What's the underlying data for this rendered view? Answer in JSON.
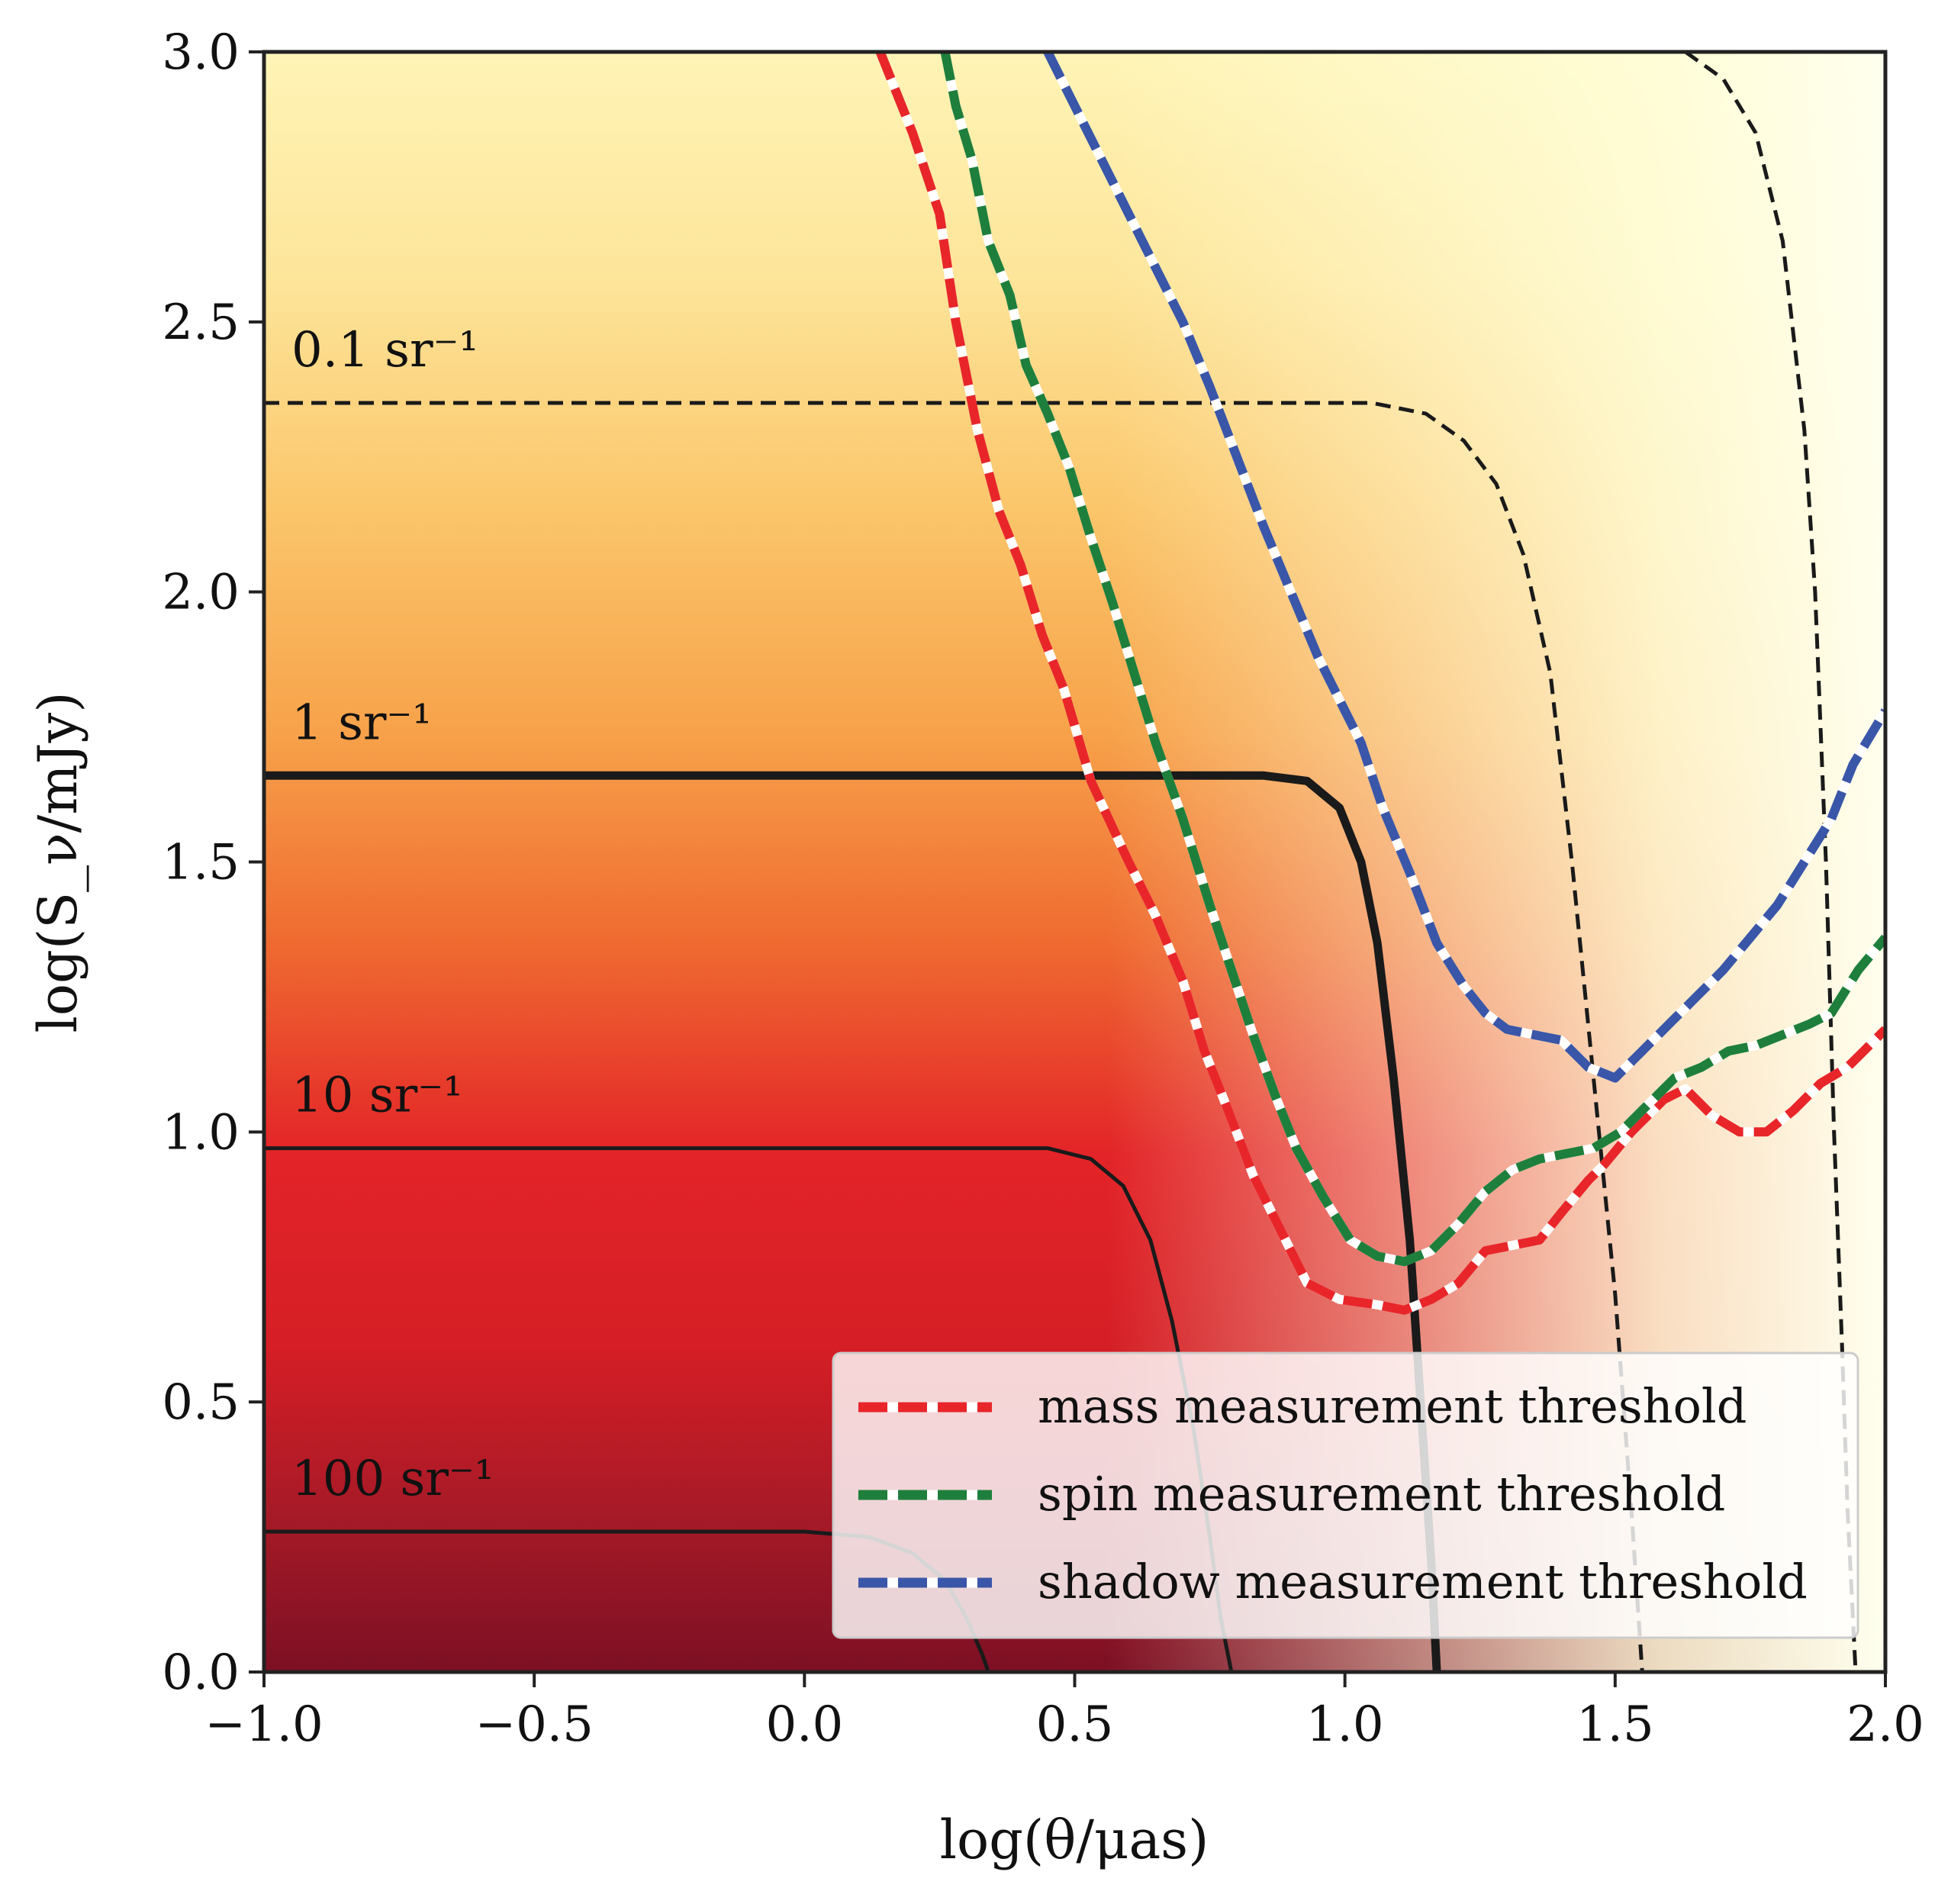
{
  "chart_data": {
    "type": "heatmap",
    "title": "",
    "xlabel": "log(θ/μas)",
    "ylabel": "log(S_ν/mJy)",
    "xlim": [
      -1.0,
      2.0
    ],
    "ylim": [
      0.0,
      3.0
    ],
    "x_ticks": [
      "−1.0",
      "−0.5",
      "0.0",
      "0.5",
      "1.0",
      "1.5",
      "2.0"
    ],
    "y_ticks": [
      "0.0",
      "0.5",
      "1.0",
      "1.5",
      "2.0",
      "2.5",
      "3.0"
    ],
    "grid": false,
    "colormap": "YlOrRd (number density, darker = higher)",
    "colors": {
      "mass": "#e8262a",
      "spin": "#1e7f3c",
      "shadow": "#3a56a8",
      "contour": "#1a1a1a",
      "cmap_high": "#7c1024",
      "cmap_mid_high": "#e32428",
      "cmap_mid": "#f7a24a",
      "cmap_low": "#fff8c4"
    },
    "contours": [
      {
        "label": "0.1 sr⁻¹",
        "style": "dashed",
        "points": [
          [
            -1.0,
            2.35
          ],
          [
            0.6,
            2.35
          ],
          [
            1.05,
            2.35
          ],
          [
            1.15,
            2.33
          ],
          [
            1.22,
            2.28
          ],
          [
            1.28,
            2.2
          ],
          [
            1.33,
            2.07
          ],
          [
            1.38,
            1.85
          ],
          [
            1.42,
            1.5
          ],
          [
            1.46,
            1.1
          ],
          [
            1.5,
            0.7
          ],
          [
            1.53,
            0.3
          ],
          [
            1.55,
            0.0
          ]
        ]
      },
      {
        "label": "1 sr⁻¹",
        "style": "thick",
        "points": [
          [
            -1.0,
            1.66
          ],
          [
            0.5,
            1.66
          ],
          [
            0.85,
            1.66
          ],
          [
            0.93,
            1.65
          ],
          [
            0.99,
            1.6
          ],
          [
            1.03,
            1.5
          ],
          [
            1.06,
            1.35
          ],
          [
            1.09,
            1.1
          ],
          [
            1.12,
            0.8
          ],
          [
            1.14,
            0.5
          ],
          [
            1.16,
            0.2
          ],
          [
            1.17,
            0.0
          ]
        ]
      },
      {
        "label": "10 sr⁻¹",
        "style": "solid",
        "points": [
          [
            -1.0,
            0.97
          ],
          [
            0.2,
            0.97
          ],
          [
            0.45,
            0.97
          ],
          [
            0.53,
            0.95
          ],
          [
            0.59,
            0.9
          ],
          [
            0.64,
            0.8
          ],
          [
            0.68,
            0.65
          ],
          [
            0.72,
            0.45
          ],
          [
            0.75,
            0.25
          ],
          [
            0.77,
            0.1
          ],
          [
            0.79,
            0.0
          ]
        ]
      },
      {
        "label": "100 sr⁻¹",
        "style": "solid",
        "points": [
          [
            -1.0,
            0.26
          ],
          [
            0.0,
            0.26
          ],
          [
            0.12,
            0.25
          ],
          [
            0.2,
            0.22
          ],
          [
            0.26,
            0.17
          ],
          [
            0.3,
            0.1
          ],
          [
            0.33,
            0.03
          ],
          [
            0.34,
            0.0
          ]
        ]
      },
      {
        "label": "",
        "style": "dashed",
        "points": [
          [
            1.63,
            3.0
          ],
          [
            1.7,
            2.95
          ],
          [
            1.76,
            2.85
          ],
          [
            1.81,
            2.65
          ],
          [
            1.85,
            2.3
          ],
          [
            1.87,
            2.0
          ],
          [
            1.89,
            1.5
          ],
          [
            1.905,
            1.0
          ],
          [
            1.92,
            0.6
          ],
          [
            1.93,
            0.3
          ],
          [
            1.945,
            0.0
          ]
        ]
      }
    ],
    "series": [
      {
        "name": "mass measurement threshold",
        "color": "#e8262a",
        "points": [
          [
            0.14,
            3.0
          ],
          [
            0.2,
            2.85
          ],
          [
            0.25,
            2.7
          ],
          [
            0.28,
            2.5
          ],
          [
            0.32,
            2.3
          ],
          [
            0.36,
            2.15
          ],
          [
            0.4,
            2.05
          ],
          [
            0.44,
            1.92
          ],
          [
            0.48,
            1.82
          ],
          [
            0.53,
            1.65
          ],
          [
            0.6,
            1.5
          ],
          [
            0.65,
            1.4
          ],
          [
            0.7,
            1.28
          ],
          [
            0.74,
            1.15
          ],
          [
            0.78,
            1.05
          ],
          [
            0.83,
            0.92
          ],
          [
            0.88,
            0.82
          ],
          [
            0.93,
            0.72
          ],
          [
            0.99,
            0.69
          ],
          [
            1.06,
            0.68
          ],
          [
            1.11,
            0.67
          ],
          [
            1.16,
            0.69
          ],
          [
            1.21,
            0.72
          ],
          [
            1.26,
            0.78
          ],
          [
            1.31,
            0.79
          ],
          [
            1.36,
            0.8
          ],
          [
            1.4,
            0.85
          ],
          [
            1.45,
            0.91
          ],
          [
            1.48,
            0.94
          ],
          [
            1.53,
            1.0
          ],
          [
            1.59,
            1.06
          ],
          [
            1.63,
            1.08
          ],
          [
            1.68,
            1.03
          ],
          [
            1.73,
            1.0
          ],
          [
            1.78,
            1.0
          ],
          [
            1.83,
            1.04
          ],
          [
            1.88,
            1.09
          ],
          [
            1.93,
            1.12
          ],
          [
            1.96,
            1.15
          ],
          [
            2.0,
            1.19
          ]
        ]
      },
      {
        "name": "spin measurement threshold",
        "color": "#1e7f3c",
        "points": [
          [
            0.26,
            3.0
          ],
          [
            0.28,
            2.9
          ],
          [
            0.31,
            2.8
          ],
          [
            0.34,
            2.65
          ],
          [
            0.38,
            2.55
          ],
          [
            0.41,
            2.42
          ],
          [
            0.45,
            2.33
          ],
          [
            0.49,
            2.23
          ],
          [
            0.53,
            2.1
          ],
          [
            0.57,
            1.98
          ],
          [
            0.61,
            1.85
          ],
          [
            0.65,
            1.72
          ],
          [
            0.7,
            1.58
          ],
          [
            0.75,
            1.42
          ],
          [
            0.79,
            1.3
          ],
          [
            0.83,
            1.18
          ],
          [
            0.87,
            1.07
          ],
          [
            0.91,
            0.97
          ],
          [
            0.96,
            0.88
          ],
          [
            1.01,
            0.8
          ],
          [
            1.06,
            0.77
          ],
          [
            1.11,
            0.76
          ],
          [
            1.16,
            0.78
          ],
          [
            1.21,
            0.83
          ],
          [
            1.26,
            0.89
          ],
          [
            1.31,
            0.93
          ],
          [
            1.36,
            0.95
          ],
          [
            1.41,
            0.96
          ],
          [
            1.46,
            0.97
          ],
          [
            1.51,
            1.0
          ],
          [
            1.56,
            1.05
          ],
          [
            1.61,
            1.1
          ],
          [
            1.66,
            1.12
          ],
          [
            1.71,
            1.15
          ],
          [
            1.76,
            1.16
          ],
          [
            1.81,
            1.18
          ],
          [
            1.86,
            1.2
          ],
          [
            1.9,
            1.22
          ],
          [
            1.95,
            1.3
          ],
          [
            2.0,
            1.36
          ]
        ]
      },
      {
        "name": "shadow measurement threshold",
        "color": "#3a56a8",
        "points": [
          [
            0.45,
            3.0
          ],
          [
            0.5,
            2.9
          ],
          [
            0.55,
            2.8
          ],
          [
            0.6,
            2.7
          ],
          [
            0.65,
            2.6
          ],
          [
            0.7,
            2.5
          ],
          [
            0.75,
            2.38
          ],
          [
            0.8,
            2.25
          ],
          [
            0.85,
            2.12
          ],
          [
            0.9,
            2.0
          ],
          [
            0.95,
            1.88
          ],
          [
            1.0,
            1.78
          ],
          [
            1.03,
            1.72
          ],
          [
            1.07,
            1.6
          ],
          [
            1.12,
            1.48
          ],
          [
            1.17,
            1.35
          ],
          [
            1.22,
            1.27
          ],
          [
            1.26,
            1.22
          ],
          [
            1.3,
            1.19
          ],
          [
            1.35,
            1.18
          ],
          [
            1.4,
            1.17
          ],
          [
            1.45,
            1.12
          ],
          [
            1.5,
            1.1
          ],
          [
            1.55,
            1.15
          ],
          [
            1.6,
            1.2
          ],
          [
            1.65,
            1.25
          ],
          [
            1.7,
            1.3
          ],
          [
            1.75,
            1.36
          ],
          [
            1.8,
            1.42
          ],
          [
            1.85,
            1.5
          ],
          [
            1.9,
            1.58
          ],
          [
            1.94,
            1.68
          ],
          [
            1.97,
            1.73
          ],
          [
            2.0,
            1.78
          ]
        ]
      }
    ],
    "legend": {
      "position": "lower-right",
      "entries": [
        "mass measurement threshold",
        "spin measurement threshold",
        "shadow measurement threshold"
      ]
    }
  }
}
